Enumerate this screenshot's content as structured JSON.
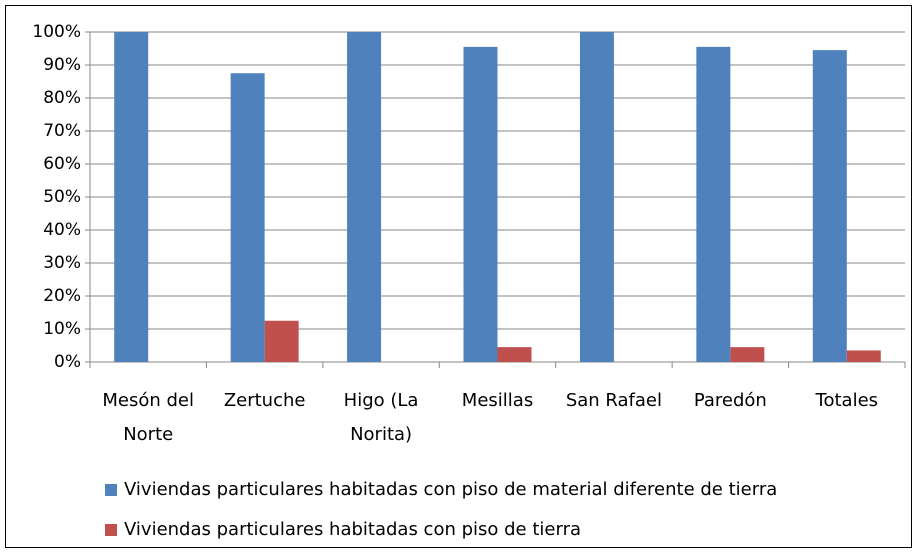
{
  "chart_data": {
    "type": "bar",
    "categories": [
      "Mesón del Norte",
      "Zertuche",
      "Higo (La Norita)",
      "Mesillas",
      "San Rafael",
      "Paredón",
      "Totales"
    ],
    "series": [
      {
        "name": "Viviendas particulares habitadas con piso de material diferente de tierra",
        "color": "#4f81bd",
        "values": [
          100,
          87.5,
          100,
          95.5,
          100,
          95.5,
          94.5
        ]
      },
      {
        "name": "Viviendas particulares habitadas con piso de tierra",
        "color": "#c0504d",
        "values": [
          0,
          12.5,
          0,
          4.5,
          0,
          4.5,
          3.5
        ]
      }
    ],
    "ylim": [
      0,
      100
    ],
    "yticks": [
      {
        "value": 0,
        "label": "0%"
      },
      {
        "value": 10,
        "label": "10%"
      },
      {
        "value": 20,
        "label": "20%"
      },
      {
        "value": 30,
        "label": "30%"
      },
      {
        "value": 40,
        "label": "40%"
      },
      {
        "value": 50,
        "label": "50%"
      },
      {
        "value": 60,
        "label": "60%"
      },
      {
        "value": 70,
        "label": "70%"
      },
      {
        "value": 80,
        "label": "80%"
      },
      {
        "value": 90,
        "label": "90%"
      },
      {
        "value": 100,
        "label": "100%"
      }
    ],
    "grid": true,
    "legend": "bottom"
  }
}
